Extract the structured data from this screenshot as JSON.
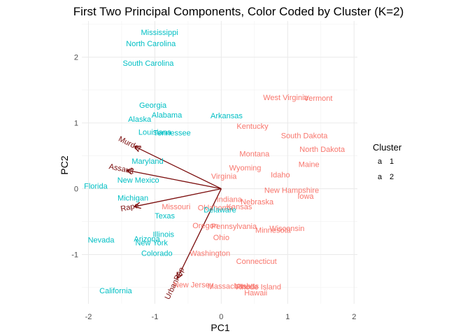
{
  "chart_data": {
    "type": "scatter",
    "title": "First Two Principal Components, Color Coded by Cluster (K=2)",
    "xlabel": "PC1",
    "ylabel": "PC2",
    "xlim": [
      -2.1,
      2.05
    ],
    "ylim": [
      -1.75,
      2.55
    ],
    "xticks": [
      -2,
      -1,
      0,
      1,
      2
    ],
    "yticks": [
      -1,
      0,
      1,
      2
    ],
    "grid": true,
    "legend": {
      "title": "Cluster",
      "position": "right",
      "glyph": "a",
      "entries": [
        {
          "label": "1",
          "color": "#F8766D"
        },
        {
          "label": "2",
          "color": "#00BFC4"
        }
      ]
    },
    "series": [
      {
        "name": "1",
        "color": "#F8766D",
        "points": [
          {
            "label": "West Virginia",
            "x": 0.97,
            "y": 1.38
          },
          {
            "label": "Vermont",
            "x": 1.46,
            "y": 1.37
          },
          {
            "label": "Kentucky",
            "x": 0.47,
            "y": 0.94
          },
          {
            "label": "South Dakota",
            "x": 1.25,
            "y": 0.8
          },
          {
            "label": "North Dakota",
            "x": 1.52,
            "y": 0.59
          },
          {
            "label": "Montana",
            "x": 0.5,
            "y": 0.52
          },
          {
            "label": "Maine",
            "x": 1.32,
            "y": 0.36
          },
          {
            "label": "Wyoming",
            "x": 0.36,
            "y": 0.31
          },
          {
            "label": "Idaho",
            "x": 0.89,
            "y": 0.2
          },
          {
            "label": "Virginia",
            "x": 0.04,
            "y": 0.18
          },
          {
            "label": "New Hampshire",
            "x": 1.06,
            "y": -0.03
          },
          {
            "label": "Iowa",
            "x": 1.27,
            "y": -0.12
          },
          {
            "label": "Indiana",
            "x": 0.12,
            "y": -0.17
          },
          {
            "label": "Nebraska",
            "x": 0.54,
            "y": -0.21
          },
          {
            "label": "Kansas",
            "x": 0.27,
            "y": -0.28
          },
          {
            "label": "Missouri",
            "x": -0.68,
            "y": -0.28
          },
          {
            "label": "Oklahoma",
            "x": -0.09,
            "y": -0.3
          },
          {
            "label": "Oregon",
            "x": -0.24,
            "y": -0.57
          },
          {
            "label": "Pennsylvania",
            "x": 0.19,
            "y": -0.58
          },
          {
            "label": "Wisconsin",
            "x": 0.99,
            "y": -0.61
          },
          {
            "label": "Minnesota",
            "x": 0.78,
            "y": -0.64
          },
          {
            "label": "Ohio",
            "x": 0.0,
            "y": -0.75
          },
          {
            "label": "Washington",
            "x": -0.17,
            "y": -0.99
          },
          {
            "label": "Connecticut",
            "x": 0.53,
            "y": -1.11
          },
          {
            "label": "New Jersey",
            "x": -0.42,
            "y": -1.47
          },
          {
            "label": "Massachusetts",
            "x": 0.18,
            "y": -1.49
          },
          {
            "label": "Utah",
            "x": 0.32,
            "y": -1.49
          },
          {
            "label": "Rhode Island",
            "x": 0.56,
            "y": -1.5
          },
          {
            "label": "Hawaii",
            "x": 0.52,
            "y": -1.59
          }
        ]
      },
      {
        "name": "2",
        "color": "#00BFC4",
        "points": [
          {
            "label": "Mississippi",
            "x": -0.93,
            "y": 2.37
          },
          {
            "label": "North Carolina",
            "x": -1.06,
            "y": 2.2
          },
          {
            "label": "South Carolina",
            "x": -1.1,
            "y": 1.9
          },
          {
            "label": "Georgia",
            "x": -1.03,
            "y": 1.26
          },
          {
            "label": "Alabama",
            "x": -0.82,
            "y": 1.11
          },
          {
            "label": "Arkansas",
            "x": 0.08,
            "y": 1.1
          },
          {
            "label": "Alaska",
            "x": -1.23,
            "y": 1.05
          },
          {
            "label": "Louisiana",
            "x": -1.0,
            "y": 0.85
          },
          {
            "label": "Tennessee",
            "x": -0.74,
            "y": 0.84
          },
          {
            "label": "Maryland",
            "x": -1.11,
            "y": 0.41
          },
          {
            "label": "New Mexico",
            "x": -1.25,
            "y": 0.12
          },
          {
            "label": "Florida",
            "x": -1.89,
            "y": 0.03
          },
          {
            "label": "Michigan",
            "x": -1.33,
            "y": -0.15
          },
          {
            "label": "Delaware",
            "x": -0.02,
            "y": -0.33
          },
          {
            "label": "Texas",
            "x": -0.85,
            "y": -0.42
          },
          {
            "label": "Illinois",
            "x": -0.87,
            "y": -0.7
          },
          {
            "label": "Nevada",
            "x": -1.81,
            "y": -0.79
          },
          {
            "label": "Arizona",
            "x": -1.12,
            "y": -0.77
          },
          {
            "label": "New York",
            "x": -1.05,
            "y": -0.83
          },
          {
            "label": "Colorado",
            "x": -0.97,
            "y": -0.99
          },
          {
            "label": "California",
            "x": -1.59,
            "y": -1.56
          }
        ]
      }
    ],
    "loadings": [
      {
        "label": "Murder",
        "x": -1.3,
        "y": 0.64
      },
      {
        "label": "Assault",
        "x": -1.42,
        "y": 0.28
      },
      {
        "label": "Rape",
        "x": -1.3,
        "y": -0.27
      },
      {
        "label": "UrbanPop",
        "x": -0.66,
        "y": -1.36
      }
    ]
  }
}
